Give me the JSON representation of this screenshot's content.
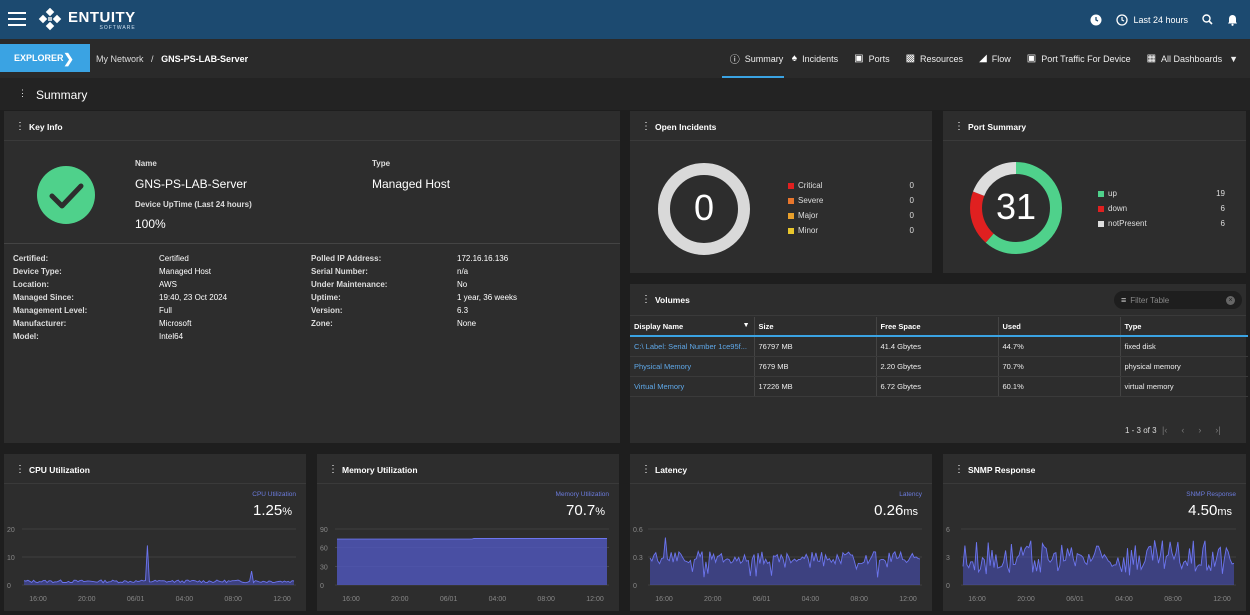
{
  "app": {
    "logo_main": "ENTUITY",
    "logo_sub": "SOFTWARE",
    "time_range": "Last 24 hours"
  },
  "nav": {
    "explorer_label": "EXPLORER",
    "breadcrumb": {
      "root": "My Network",
      "sep": "/",
      "current": "GNS-PS-LAB-Server"
    },
    "tabs": [
      "Summary",
      "Incidents",
      "Ports",
      "Resources",
      "Flow",
      "Port Traffic For Device",
      "All Dashboards"
    ]
  },
  "page": {
    "title": "Summary"
  },
  "key_info": {
    "title": "Key Info",
    "name_label": "Name",
    "name": "GNS-PS-LAB-Server",
    "type_label": "Type",
    "type": "Managed Host",
    "uptime_label": "Device UpTime (Last 24 hours)",
    "uptime": "100%",
    "left": [
      {
        "k": "Certified:",
        "v": "Certified"
      },
      {
        "k": "Device Type:",
        "v": "Managed Host"
      },
      {
        "k": "Location:",
        "v": "AWS"
      },
      {
        "k": "Managed Since:",
        "v": "19:40, 23 Oct 2024"
      },
      {
        "k": "Management Level:",
        "v": "Full"
      },
      {
        "k": "Manufacturer:",
        "v": "Microsoft"
      },
      {
        "k": "Model:",
        "v": "Intel64"
      }
    ],
    "right": [
      {
        "k": "Polled IP Address:",
        "v": "172.16.16.136"
      },
      {
        "k": "Serial Number:",
        "v": "n/a"
      },
      {
        "k": "Under Maintenance:",
        "v": "No"
      },
      {
        "k": "Uptime:",
        "v": "1 year, 36 weeks"
      },
      {
        "k": "Version:",
        "v": "6.3"
      },
      {
        "k": "Zone:",
        "v": "None"
      }
    ]
  },
  "open_incidents": {
    "title": "Open Incidents",
    "total": "0",
    "rows": [
      {
        "label": "Critical",
        "value": "0",
        "color": "#e02020"
      },
      {
        "label": "Severe",
        "value": "0",
        "color": "#e8762c"
      },
      {
        "label": "Major",
        "value": "0",
        "color": "#e8a02c"
      },
      {
        "label": "Minor",
        "value": "0",
        "color": "#e8c62c"
      }
    ]
  },
  "port_summary": {
    "title": "Port Summary",
    "total": "31",
    "rows": [
      {
        "label": "up",
        "value": "19",
        "color": "#4fd18b"
      },
      {
        "label": "down",
        "value": "6",
        "color": "#e02020"
      },
      {
        "label": "notPresent",
        "value": "6",
        "color": "#dddddd"
      }
    ]
  },
  "volumes": {
    "title": "Volumes",
    "filter_placeholder": "Filter Table",
    "columns": [
      "Display Name",
      "Size",
      "Free Space",
      "Used",
      "Type"
    ],
    "rows": [
      [
        "C:\\ Label: Serial Number 1ce95f...",
        "76797 MB",
        "41.4 Gbytes",
        "44.7%",
        "fixed disk"
      ],
      [
        "Physical Memory",
        "7679 MB",
        "2.20 Gbytes",
        "70.7%",
        "physical memory"
      ],
      [
        "Virtual Memory",
        "17226 MB",
        "6.72 Gbytes",
        "60.1%",
        "virtual memory"
      ]
    ],
    "pager": "1 - 3 of 3"
  },
  "charts": [
    {
      "title": "CPU Utilization",
      "series_label": "CPU Utilization",
      "value": "1.25",
      "unit": "%",
      "y_ticks": [
        "20",
        "10",
        "0"
      ],
      "x_ticks": [
        "16:00",
        "20:00",
        "06/01",
        "04:00",
        "08:00",
        "12:00"
      ]
    },
    {
      "title": "Memory Utilization",
      "series_label": "Memory Utilization",
      "value": "70.7",
      "unit": "%",
      "y_ticks": [
        "90",
        "60",
        "30",
        "0"
      ],
      "x_ticks": [
        "16:00",
        "20:00",
        "06/01",
        "04:00",
        "08:00",
        "12:00"
      ]
    },
    {
      "title": "Latency",
      "series_label": "Latency",
      "value": "0.26",
      "unit": "ms",
      "y_ticks": [
        "0.6",
        "0.3",
        "0"
      ],
      "x_ticks": [
        "16:00",
        "20:00",
        "06/01",
        "04:00",
        "08:00",
        "12:00"
      ]
    },
    {
      "title": "SNMP Response",
      "series_label": "SNMP Response",
      "value": "4.50",
      "unit": "ms",
      "y_ticks": [
        "6",
        "3",
        "0"
      ],
      "x_ticks": [
        "16:00",
        "20:00",
        "06/01",
        "04:00",
        "08:00",
        "12:00"
      ]
    }
  ],
  "colors": {
    "accent": "#3aa3e3",
    "topbar": "#1c4a70",
    "series": "#5b64d6"
  }
}
